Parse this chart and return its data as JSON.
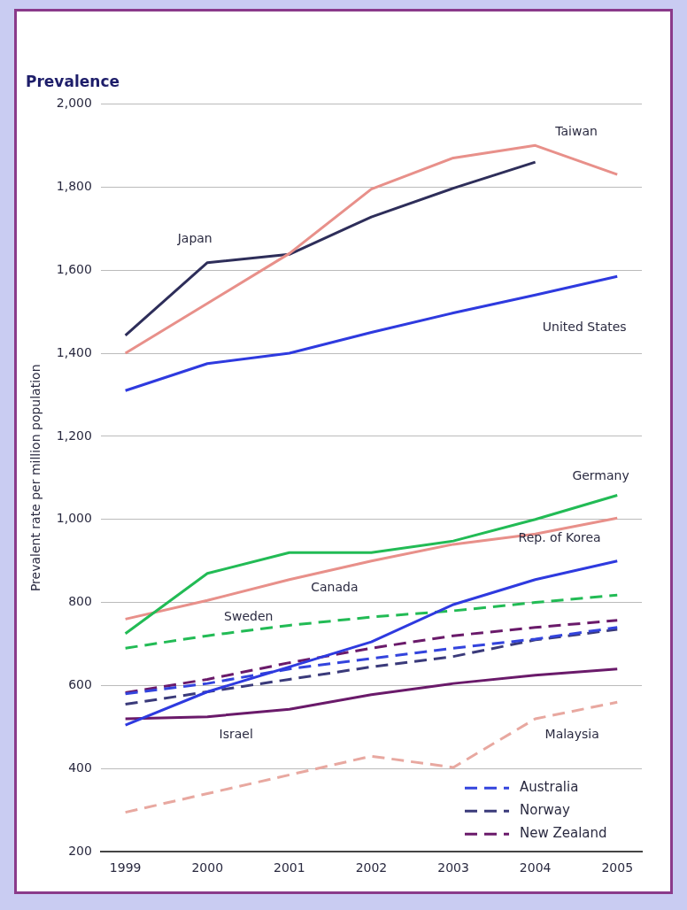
{
  "chart_data": {
    "type": "line",
    "title": "Prevalence",
    "ylabel": "Prevalent rate per million population",
    "x": [
      1999,
      2000,
      2001,
      2002,
      2003,
      2004,
      2005
    ],
    "xlim": [
      1998.7,
      2005.3
    ],
    "xticks": [
      1999,
      2000,
      2001,
      2002,
      2003,
      2004,
      2005
    ],
    "ylim": [
      200,
      2000
    ],
    "yticks": [
      {
        "value": 200,
        "label": "200"
      },
      {
        "value": 400,
        "label": "400"
      },
      {
        "value": 600,
        "label": "600"
      },
      {
        "value": 800,
        "label": "800"
      },
      {
        "value": 1000,
        "label": "1,000"
      },
      {
        "value": 1200,
        "label": "1,200"
      },
      {
        "value": 1400,
        "label": "1,400"
      },
      {
        "value": 1600,
        "label": "1,600"
      },
      {
        "value": 1800,
        "label": "1,800"
      },
      {
        "value": 2000,
        "label": "2,000"
      }
    ],
    "grid": "y",
    "legend": "bottom right",
    "marker": "none",
    "series": [
      {
        "color": "#e8908a",
        "line_style": "solid",
        "values": [
          1400,
          1520,
          1640,
          1795,
          1870,
          1900,
          1830
        ]
      },
      {
        "color": "#2e2e5a",
        "line_style": "solid",
        "values": [
          1443,
          1618,
          1638,
          1728,
          1797,
          1860,
          null
        ]
      },
      {
        "color": "#2e3adf",
        "line_style": "solid",
        "values": [
          1310,
          1375,
          1400,
          1450,
          1497,
          1540,
          1585
        ]
      },
      {
        "color": "#22bb55",
        "line_style": "solid",
        "values": [
          725,
          870,
          920,
          920,
          948,
          1000,
          1058
        ]
      },
      {
        "color": "#e8908a",
        "line_style": "solid",
        "values": [
          760,
          805,
          855,
          900,
          940,
          965,
          1003
        ]
      },
      {
        "color": "#2e3adf",
        "line_style": "solid",
        "values": [
          505,
          585,
          645,
          705,
          795,
          855,
          900
        ]
      },
      {
        "color": "#22bb55",
        "line_style": "dashed",
        "values": [
          690,
          720,
          745,
          765,
          780,
          800,
          818
        ]
      },
      {
        "name": "Australia",
        "color": "#3344dd",
        "line_style": "dashed",
        "values": [
          580,
          605,
          640,
          665,
          690,
          712,
          740
        ]
      },
      {
        "name": "Norway",
        "color": "#3a3a7a",
        "line_style": "dashed",
        "values": [
          555,
          585,
          615,
          645,
          670,
          710,
          735
        ]
      },
      {
        "name": "New Zealand",
        "color": "#6a1a6a",
        "line_style": "dashed",
        "values": [
          583,
          615,
          655,
          690,
          720,
          740,
          757
        ]
      },
      {
        "color": "#6a1a6a",
        "line_style": "solid",
        "values": [
          520,
          525,
          543,
          578,
          605,
          625,
          640
        ]
      },
      {
        "color": "#e8a8a0",
        "line_style": "dashed",
        "values": [
          295,
          340,
          385,
          430,
          403,
          520,
          560
        ]
      }
    ],
    "annotations": [
      "Taiwan",
      "Japan",
      "United States",
      "Germany",
      "Canada",
      "Rep. of Korea",
      "Sweden",
      "Israel",
      "Malaysia"
    ]
  }
}
